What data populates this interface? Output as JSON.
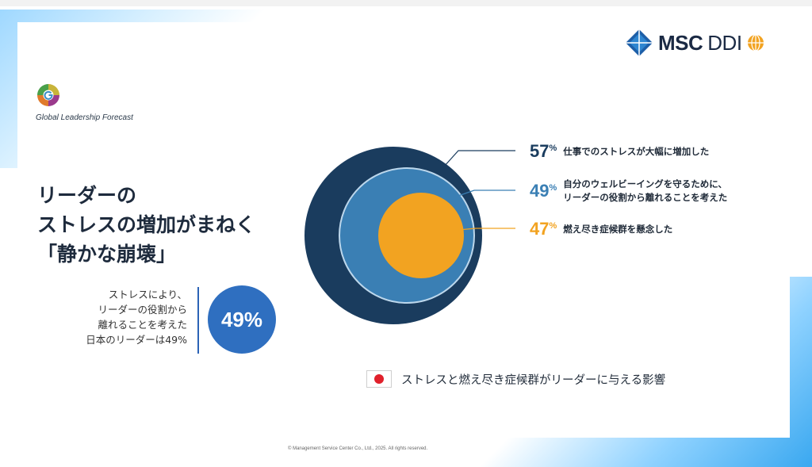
{
  "brand": {
    "msc": "MSC",
    "ddi": "DDI"
  },
  "forecast_label": "Global Leadership Forecast",
  "headline": {
    "line1": "リーダーの",
    "line2": "ストレスの増加がまねく",
    "line3": "「静かな崩壊」"
  },
  "stat": {
    "line1": "ストレスにより、",
    "line2": "リーダーの役割から",
    "line3": "離れることを考えた",
    "line4": "日本のリーダーは49%",
    "value": "49%"
  },
  "chart_data": {
    "type": "nested-circles",
    "series": [
      {
        "name": "仕事でのストレスが大幅に増加した",
        "value": 57,
        "label": "57%",
        "color": "#1a3c5e"
      },
      {
        "name": "自分のウェルビーイングを守るために、リーダーの役割から離れることを考えた",
        "value": 49,
        "label": "49%",
        "color": "#3a7fb4"
      },
      {
        "name": "燃え尽き症候群を懸念した",
        "value": 47,
        "label": "47%",
        "color": "#f2a321"
      }
    ],
    "labels": {
      "s1": {
        "num": "57",
        "unit": "%",
        "desc1": "仕事でのストレスが大幅に増加した"
      },
      "s2": {
        "num": "49",
        "unit": "%",
        "desc1": "自分のウェルビーイングを守るために、",
        "desc2": "リーダーの役割から離れることを考えた"
      },
      "s3": {
        "num": "47",
        "unit": "%",
        "desc1": "燃え尽き症候群を懸念した"
      }
    },
    "legend": "ストレスと燃え尽き症候群がリーダーに与える影響"
  },
  "colors": {
    "navy": "#1a3c5e",
    "blue": "#3a7fb4",
    "orange": "#f2a321",
    "accent": "#2f6fc0"
  },
  "copyright": "© Management Service Center Co., Ltd., 2025. All rights reserved."
}
